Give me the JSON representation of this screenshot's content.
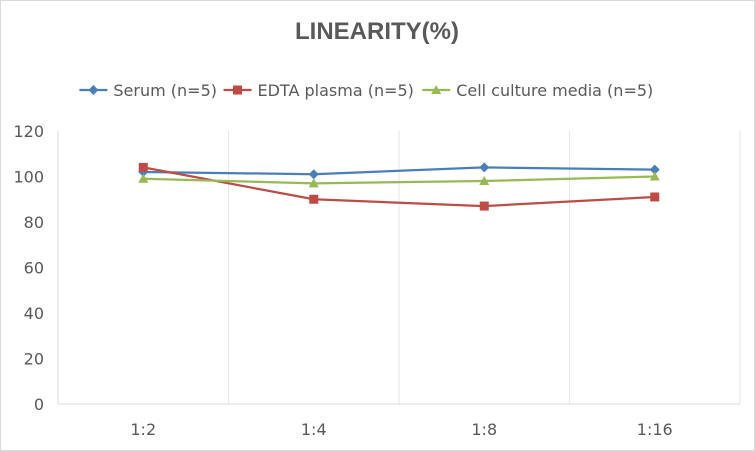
{
  "chart_data": {
    "type": "line",
    "title": "LINEARITY(%)",
    "xlabel": "",
    "ylabel": "",
    "categories": [
      "1:2",
      "1:4",
      "1:8",
      "1:16"
    ],
    "ylim": [
      0,
      120
    ],
    "yticks": [
      0,
      20,
      40,
      60,
      80,
      100,
      120
    ],
    "grid": "vertical",
    "legend_position": "top",
    "series": [
      {
        "name": "Serum (n=5)",
        "values": [
          102,
          101,
          104,
          103
        ],
        "color": "#4a7ebb",
        "marker": "diamond"
      },
      {
        "name": "EDTA plasma (n=5)",
        "values": [
          104,
          90,
          87,
          91
        ],
        "color": "#be4b48",
        "marker": "square"
      },
      {
        "name": "Cell culture media (n=5)",
        "values": [
          99,
          97,
          98,
          100
        ],
        "color": "#98b954",
        "marker": "triangle"
      }
    ]
  }
}
